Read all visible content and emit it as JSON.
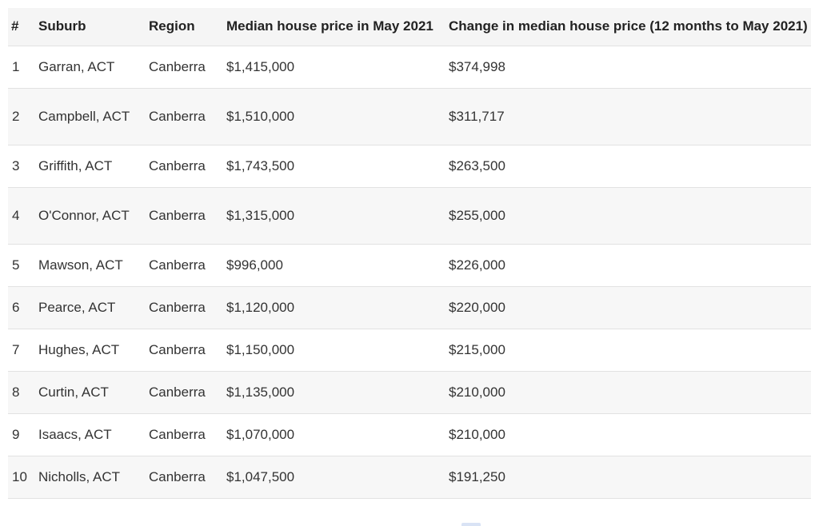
{
  "table": {
    "headers": {
      "num": "#",
      "suburb": "Suburb",
      "region": "Region",
      "price": "Median house price in May 2021",
      "change": "Change in median house price (12 months to May 2021)"
    },
    "rows": [
      {
        "num": "1",
        "suburb": "Garran, ACT",
        "region": "Canberra",
        "price": "$1,415,000",
        "change": "$374,998"
      },
      {
        "num": "2",
        "suburb": "Campbell, ACT",
        "region": "Canberra",
        "price": "$1,510,000",
        "change": "$311,717"
      },
      {
        "num": "3",
        "suburb": "Griffith, ACT",
        "region": "Canberra",
        "price": "$1,743,500",
        "change": "$263,500"
      },
      {
        "num": "4",
        "suburb": "O'Connor, ACT",
        "region": "Canberra",
        "price": "$1,315,000",
        "change": "$255,000"
      },
      {
        "num": "5",
        "suburb": "Mawson, ACT",
        "region": "Canberra",
        "price": "$996,000",
        "change": "$226,000"
      },
      {
        "num": "6",
        "suburb": "Pearce, ACT",
        "region": "Canberra",
        "price": "$1,120,000",
        "change": "$220,000"
      },
      {
        "num": "7",
        "suburb": "Hughes, ACT",
        "region": "Canberra",
        "price": "$1,150,000",
        "change": "$215,000"
      },
      {
        "num": "8",
        "suburb": "Curtin, ACT",
        "region": "Canberra",
        "price": "$1,135,000",
        "change": "$210,000"
      },
      {
        "num": "9",
        "suburb": "Isaacs, ACT",
        "region": "Canberra",
        "price": "$1,070,000",
        "change": "$210,000"
      },
      {
        "num": "10",
        "suburb": "Nicholls, ACT",
        "region": "Canberra",
        "price": "$1,047,500",
        "change": "$191,250"
      }
    ]
  }
}
